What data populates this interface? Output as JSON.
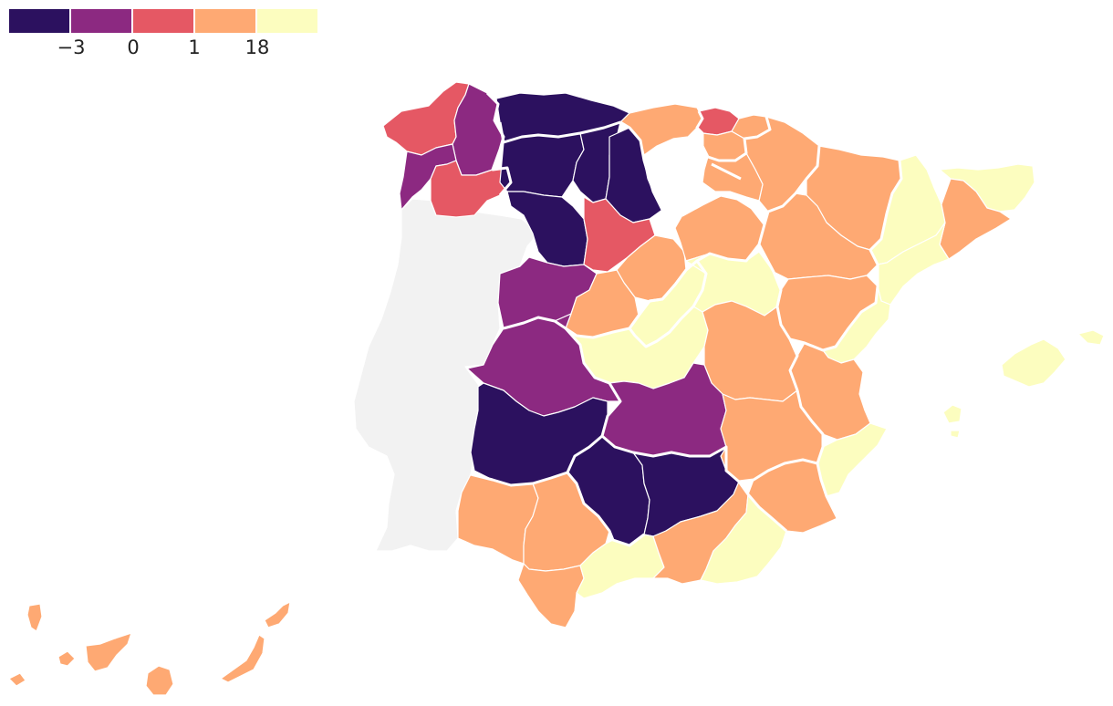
{
  "legend": {
    "colors": [
      "#2c115f",
      "#8c2981",
      "#e55864",
      "#fea973",
      "#fcfdbf"
    ],
    "ticks": [
      "−3",
      "0",
      "1",
      "18"
    ]
  },
  "colors": {
    "no_data": "#f2f2f2",
    "border": "#ffffff"
  },
  "provinces": [
    {
      "name": "portugal",
      "class": "none"
    },
    {
      "name": "a-coruna",
      "class": 2
    },
    {
      "name": "lugo",
      "class": 1
    },
    {
      "name": "pontevedra",
      "class": 1
    },
    {
      "name": "ourense",
      "class": 2
    },
    {
      "name": "asturias",
      "class": 0
    },
    {
      "name": "leon",
      "class": 0
    },
    {
      "name": "palencia",
      "class": 0
    },
    {
      "name": "burgos",
      "class": 0
    },
    {
      "name": "zamora",
      "class": 0
    },
    {
      "name": "valladolid",
      "class": 2
    },
    {
      "name": "salamanca",
      "class": 1
    },
    {
      "name": "cantabria",
      "class": 3
    },
    {
      "name": "bizkaia",
      "class": 2
    },
    {
      "name": "gipuzkoa",
      "class": 3
    },
    {
      "name": "araba",
      "class": 3
    },
    {
      "name": "navarra",
      "class": 3
    },
    {
      "name": "la-rioja",
      "class": 3
    },
    {
      "name": "soria",
      "class": 3
    },
    {
      "name": "segovia",
      "class": 3
    },
    {
      "name": "avila",
      "class": 3
    },
    {
      "name": "huesca",
      "class": 3
    },
    {
      "name": "zaragoza",
      "class": 3
    },
    {
      "name": "teruel",
      "class": 3
    },
    {
      "name": "lleida",
      "class": 4
    },
    {
      "name": "girona",
      "class": 4
    },
    {
      "name": "barcelona",
      "class": 3
    },
    {
      "name": "tarragona",
      "class": 4
    },
    {
      "name": "castellon",
      "class": 4
    },
    {
      "name": "valencia",
      "class": 3
    },
    {
      "name": "alicante",
      "class": 4
    },
    {
      "name": "madrid",
      "class": 4
    },
    {
      "name": "guadalajara",
      "class": 4
    },
    {
      "name": "toledo",
      "class": 4
    },
    {
      "name": "cuenca",
      "class": 3
    },
    {
      "name": "caceres",
      "class": 1
    },
    {
      "name": "badajoz",
      "class": 0
    },
    {
      "name": "ciudad-real",
      "class": 1
    },
    {
      "name": "albacete",
      "class": 3
    },
    {
      "name": "murcia",
      "class": 3
    },
    {
      "name": "cordoba",
      "class": 0
    },
    {
      "name": "jaen",
      "class": 0
    },
    {
      "name": "huelva",
      "class": 3
    },
    {
      "name": "sevilla",
      "class": 3
    },
    {
      "name": "cadiz",
      "class": 3
    },
    {
      "name": "malaga",
      "class": 4
    },
    {
      "name": "granada",
      "class": 3
    },
    {
      "name": "almeria",
      "class": 4
    },
    {
      "name": "mallorca",
      "class": 4
    },
    {
      "name": "menorca",
      "class": 4
    },
    {
      "name": "ibiza",
      "class": 4
    },
    {
      "name": "formentera",
      "class": 4
    },
    {
      "name": "la-palma",
      "class": 3
    },
    {
      "name": "el-hierro",
      "class": 3
    },
    {
      "name": "la-gomera",
      "class": 3
    },
    {
      "name": "tenerife",
      "class": 3
    },
    {
      "name": "gran-canaria",
      "class": 3
    },
    {
      "name": "fuerteventura",
      "class": 3
    },
    {
      "name": "lanzarote",
      "class": 3
    }
  ]
}
